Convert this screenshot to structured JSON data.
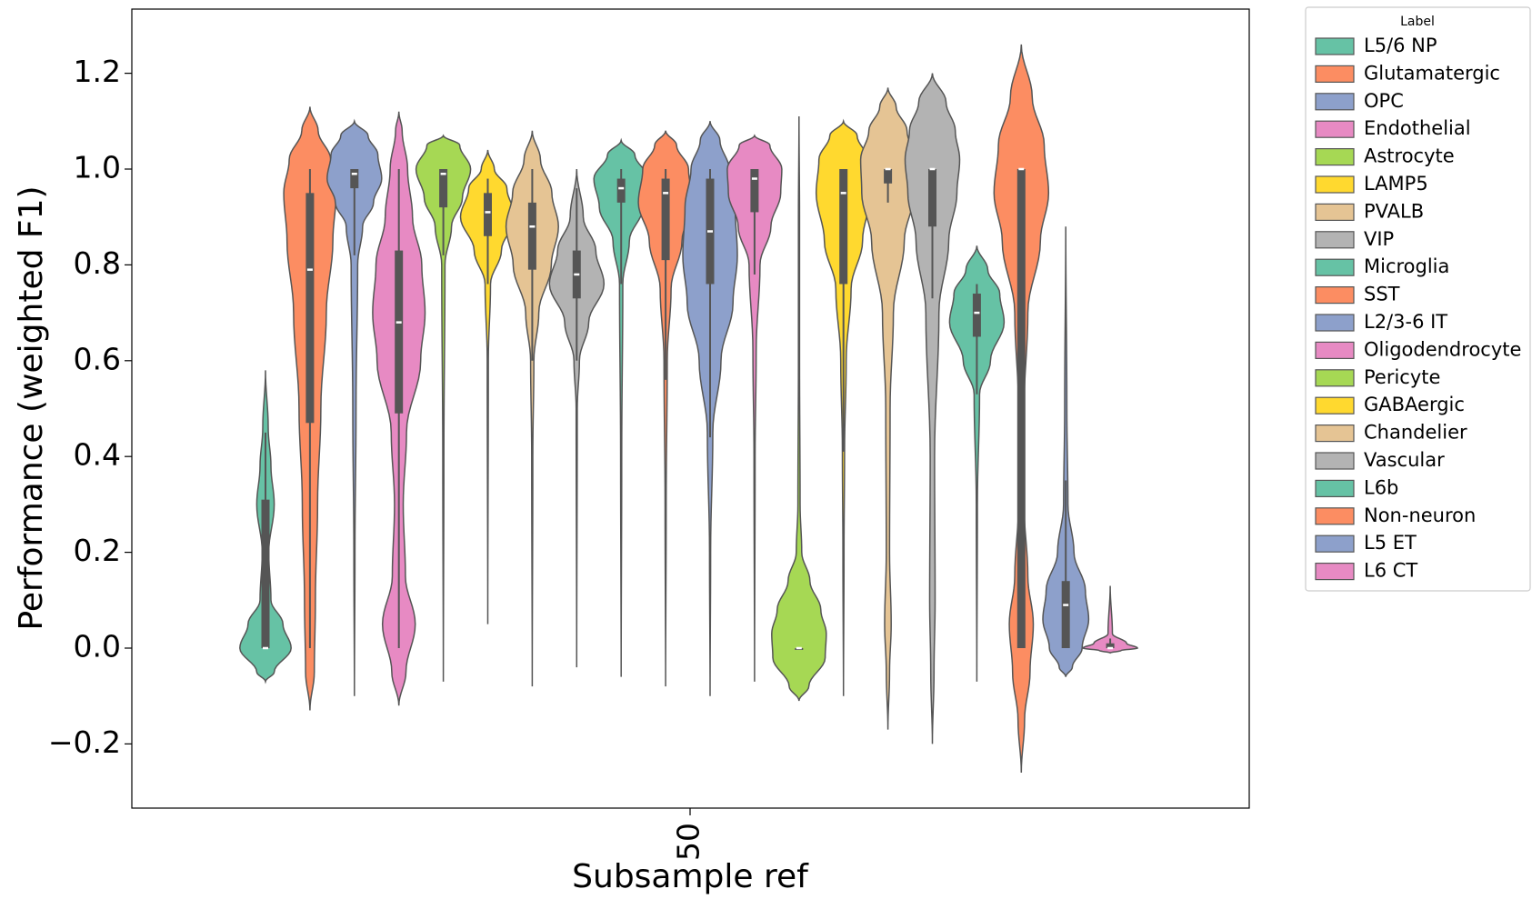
{
  "chart_data": {
    "type": "violin",
    "title": "",
    "xlabel": "Subsample ref",
    "ylabel": "Performance (weighted F1)",
    "categories": [
      "50"
    ],
    "ylim": [
      -0.33,
      1.33
    ],
    "yticks": [
      -0.2,
      0.0,
      0.2,
      0.4,
      0.6,
      0.8,
      1.0,
      1.2
    ],
    "ytick_labels": [
      "−0.2",
      "0.0",
      "0.2",
      "0.4",
      "0.6",
      "0.8",
      "1.0",
      "1.2"
    ],
    "grid": false,
    "legend": {
      "title": "Label",
      "placement": "outside-top-right"
    },
    "colors": {
      "palette": [
        "#66c2a5",
        "#fc8d62",
        "#8da0cb",
        "#e78ac3",
        "#a6d854",
        "#ffd92f",
        "#e5c494",
        "#b3b3b3"
      ],
      "edge": "#555555",
      "box": "#555555",
      "median": "#ffffff"
    },
    "series": [
      {
        "name": "L5/6 NP",
        "color": "#66c2a5",
        "min": -0.07,
        "max": 0.58,
        "q1": 0.0,
        "median": 0.0,
        "q3": 0.31,
        "wlo": 0.0,
        "whi": 0.45,
        "kde": [
          [
            -0.07,
            0
          ],
          [
            -0.05,
            0.16
          ],
          [
            0.0,
            0.47
          ],
          [
            0.05,
            0.32
          ],
          [
            0.1,
            0.1
          ],
          [
            0.2,
            0.06
          ],
          [
            0.3,
            0.16
          ],
          [
            0.38,
            0.1
          ],
          [
            0.46,
            0.05
          ],
          [
            0.58,
            0
          ]
        ]
      },
      {
        "name": "Glutamatergic",
        "color": "#fc8d62",
        "min": -0.13,
        "max": 1.13,
        "q1": 0.47,
        "median": 0.79,
        "q3": 0.95,
        "wlo": 0.0,
        "whi": 1.0,
        "kde": [
          [
            -0.13,
            0
          ],
          [
            -0.05,
            0.08
          ],
          [
            0.1,
            0.1
          ],
          [
            0.3,
            0.14
          ],
          [
            0.5,
            0.2
          ],
          [
            0.7,
            0.3
          ],
          [
            0.85,
            0.42
          ],
          [
            0.95,
            0.48
          ],
          [
            1.02,
            0.38
          ],
          [
            1.08,
            0.15
          ],
          [
            1.13,
            0
          ]
        ]
      },
      {
        "name": "OPC",
        "color": "#8da0cb",
        "min": -0.1,
        "max": 1.1,
        "q1": 0.96,
        "median": 0.99,
        "q3": 1.0,
        "wlo": 0.82,
        "whi": 1.0,
        "kde": [
          [
            -0.1,
            0
          ],
          [
            0.2,
            0.01
          ],
          [
            0.5,
            0.03
          ],
          [
            0.8,
            0.06
          ],
          [
            0.88,
            0.15
          ],
          [
            0.93,
            0.35
          ],
          [
            0.98,
            0.5
          ],
          [
            1.03,
            0.43
          ],
          [
            1.07,
            0.25
          ],
          [
            1.1,
            0
          ]
        ]
      },
      {
        "name": "Endothelial",
        "color": "#e78ac3",
        "min": -0.12,
        "max": 1.12,
        "q1": 0.49,
        "median": 0.68,
        "q3": 0.83,
        "wlo": 0.0,
        "whi": 1.0,
        "kde": [
          [
            -0.12,
            0
          ],
          [
            -0.05,
            0.13
          ],
          [
            0.05,
            0.3
          ],
          [
            0.15,
            0.12
          ],
          [
            0.3,
            0.08
          ],
          [
            0.45,
            0.14
          ],
          [
            0.6,
            0.4
          ],
          [
            0.7,
            0.48
          ],
          [
            0.8,
            0.42
          ],
          [
            0.9,
            0.25
          ],
          [
            1.0,
            0.16
          ],
          [
            1.08,
            0.06
          ],
          [
            1.12,
            0
          ]
        ]
      },
      {
        "name": "Astrocyte",
        "color": "#a6d854",
        "min": -0.07,
        "max": 1.07,
        "q1": 0.92,
        "median": 0.99,
        "q3": 1.0,
        "wlo": 0.82,
        "whi": 1.0,
        "kde": [
          [
            -0.07,
            0
          ],
          [
            0.4,
            0.01
          ],
          [
            0.8,
            0.03
          ],
          [
            0.88,
            0.15
          ],
          [
            0.94,
            0.35
          ],
          [
            1.0,
            0.5
          ],
          [
            1.05,
            0.3
          ],
          [
            1.07,
            0
          ]
        ]
      },
      {
        "name": "LAMP5",
        "color": "#ffd92f",
        "min": 0.05,
        "max": 1.04,
        "q1": 0.86,
        "median": 0.91,
        "q3": 0.95,
        "wlo": 0.76,
        "whi": 0.98,
        "kde": [
          [
            0.05,
            0
          ],
          [
            0.6,
            0.01
          ],
          [
            0.76,
            0.05
          ],
          [
            0.83,
            0.25
          ],
          [
            0.9,
            0.5
          ],
          [
            0.96,
            0.35
          ],
          [
            1.0,
            0.12
          ],
          [
            1.04,
            0
          ]
        ]
      },
      {
        "name": "PVALB",
        "color": "#e5c494",
        "min": -0.08,
        "max": 1.08,
        "q1": 0.79,
        "median": 0.88,
        "q3": 0.93,
        "wlo": 0.6,
        "whi": 1.0,
        "kde": [
          [
            -0.08,
            0
          ],
          [
            0.4,
            0.01
          ],
          [
            0.6,
            0.03
          ],
          [
            0.7,
            0.12
          ],
          [
            0.8,
            0.35
          ],
          [
            0.88,
            0.48
          ],
          [
            0.95,
            0.36
          ],
          [
            1.02,
            0.15
          ],
          [
            1.08,
            0
          ]
        ]
      },
      {
        "name": "VIP",
        "color": "#b3b3b3",
        "min": -0.04,
        "max": 1.0,
        "q1": 0.73,
        "median": 0.78,
        "q3": 0.83,
        "wlo": 0.6,
        "whi": 0.96,
        "kde": [
          [
            -0.04,
            0
          ],
          [
            0.5,
            0.01
          ],
          [
            0.6,
            0.05
          ],
          [
            0.68,
            0.22
          ],
          [
            0.76,
            0.5
          ],
          [
            0.83,
            0.35
          ],
          [
            0.9,
            0.12
          ],
          [
            1.0,
            0
          ]
        ]
      },
      {
        "name": "Microglia",
        "color": "#66c2a5",
        "min": -0.06,
        "max": 1.06,
        "q1": 0.93,
        "median": 0.96,
        "q3": 0.98,
        "wlo": 0.76,
        "whi": 1.0,
        "kde": [
          [
            -0.06,
            0
          ],
          [
            0.4,
            0.01
          ],
          [
            0.76,
            0.03
          ],
          [
            0.85,
            0.15
          ],
          [
            0.92,
            0.4
          ],
          [
            0.98,
            0.5
          ],
          [
            1.03,
            0.25
          ],
          [
            1.06,
            0
          ]
        ]
      },
      {
        "name": "SST",
        "color": "#fc8d62",
        "min": -0.08,
        "max": 1.08,
        "q1": 0.81,
        "median": 0.95,
        "q3": 0.98,
        "wlo": 0.56,
        "whi": 1.0,
        "kde": [
          [
            -0.08,
            0
          ],
          [
            0.3,
            0.01
          ],
          [
            0.6,
            0.03
          ],
          [
            0.75,
            0.1
          ],
          [
            0.85,
            0.3
          ],
          [
            0.93,
            0.5
          ],
          [
            1.0,
            0.42
          ],
          [
            1.05,
            0.2
          ],
          [
            1.08,
            0
          ]
        ]
      },
      {
        "name": "L2/3-6 IT",
        "color": "#8da0cb",
        "min": -0.1,
        "max": 1.1,
        "q1": 0.76,
        "median": 0.87,
        "q3": 0.98,
        "wlo": 0.44,
        "whi": 1.0,
        "kde": [
          [
            -0.1,
            0
          ],
          [
            0.2,
            0.01
          ],
          [
            0.45,
            0.05
          ],
          [
            0.6,
            0.2
          ],
          [
            0.72,
            0.42
          ],
          [
            0.82,
            0.5
          ],
          [
            0.92,
            0.46
          ],
          [
            1.0,
            0.35
          ],
          [
            1.06,
            0.18
          ],
          [
            1.1,
            0
          ]
        ]
      },
      {
        "name": "Oligodendrocyte",
        "color": "#e78ac3",
        "min": -0.07,
        "max": 1.07,
        "q1": 0.91,
        "median": 0.98,
        "q3": 1.0,
        "wlo": 0.78,
        "whi": 1.0,
        "kde": [
          [
            -0.07,
            0
          ],
          [
            0.4,
            0.01
          ],
          [
            0.62,
            0.03
          ],
          [
            0.8,
            0.1
          ],
          [
            0.88,
            0.3
          ],
          [
            0.95,
            0.48
          ],
          [
            1.0,
            0.5
          ],
          [
            1.05,
            0.28
          ],
          [
            1.07,
            0
          ]
        ]
      },
      {
        "name": "Pericyte",
        "color": "#a6d854",
        "min": -0.11,
        "max": 1.11,
        "q1": 0.0,
        "median": 0.0,
        "q3": 0.0,
        "wlo": 0.0,
        "whi": 0.0,
        "kde": [
          [
            -0.11,
            0
          ],
          [
            -0.08,
            0.18
          ],
          [
            -0.02,
            0.48
          ],
          [
            0.03,
            0.5
          ],
          [
            0.08,
            0.4
          ],
          [
            0.14,
            0.2
          ],
          [
            0.2,
            0.05
          ],
          [
            0.3,
            0.02
          ],
          [
            0.6,
            0.01
          ],
          [
            0.9,
            0.01
          ],
          [
            1.11,
            0
          ]
        ]
      },
      {
        "name": "GABAergic",
        "color": "#ffd92f",
        "min": -0.1,
        "max": 1.1,
        "q1": 0.76,
        "median": 0.95,
        "q3": 1.0,
        "wlo": 0.41,
        "whi": 1.0,
        "kde": [
          [
            -0.1,
            0
          ],
          [
            0.2,
            0.01
          ],
          [
            0.41,
            0.02
          ],
          [
            0.6,
            0.05
          ],
          [
            0.75,
            0.14
          ],
          [
            0.85,
            0.35
          ],
          [
            0.95,
            0.5
          ],
          [
            1.02,
            0.45
          ],
          [
            1.07,
            0.25
          ],
          [
            1.1,
            0
          ]
        ]
      },
      {
        "name": "Chandelier",
        "color": "#e5c494",
        "min": -0.17,
        "max": 1.17,
        "q1": 0.97,
        "median": 1.0,
        "q3": 1.0,
        "wlo": 0.93,
        "whi": 1.0,
        "kde": [
          [
            -0.17,
            0
          ],
          [
            -0.05,
            0.03
          ],
          [
            0.05,
            0.06
          ],
          [
            0.2,
            0.03
          ],
          [
            0.5,
            0.04
          ],
          [
            0.7,
            0.1
          ],
          [
            0.85,
            0.3
          ],
          [
            0.95,
            0.48
          ],
          [
            1.02,
            0.5
          ],
          [
            1.08,
            0.35
          ],
          [
            1.13,
            0.15
          ],
          [
            1.17,
            0
          ]
        ]
      },
      {
        "name": "Vascular",
        "color": "#b3b3b3",
        "min": -0.2,
        "max": 1.2,
        "q1": 0.88,
        "median": 1.0,
        "q3": 1.0,
        "wlo": 0.73,
        "whi": 1.0,
        "kde": [
          [
            -0.2,
            0
          ],
          [
            -0.05,
            0.03
          ],
          [
            0.1,
            0.05
          ],
          [
            0.4,
            0.04
          ],
          [
            0.7,
            0.12
          ],
          [
            0.85,
            0.3
          ],
          [
            0.95,
            0.45
          ],
          [
            1.02,
            0.5
          ],
          [
            1.08,
            0.42
          ],
          [
            1.14,
            0.25
          ],
          [
            1.2,
            0
          ]
        ]
      },
      {
        "name": "L6b",
        "color": "#66c2a5",
        "min": -0.07,
        "max": 0.84,
        "q1": 0.65,
        "median": 0.7,
        "q3": 0.74,
        "wlo": 0.53,
        "whi": 0.76,
        "kde": [
          [
            -0.07,
            0
          ],
          [
            0.3,
            0.01
          ],
          [
            0.53,
            0.05
          ],
          [
            0.6,
            0.25
          ],
          [
            0.68,
            0.5
          ],
          [
            0.74,
            0.42
          ],
          [
            0.79,
            0.2
          ],
          [
            0.84,
            0
          ]
        ]
      },
      {
        "name": "Non-neuron",
        "color": "#fc8d62",
        "min": -0.26,
        "max": 1.26,
        "q1": 0.0,
        "median": 1.0,
        "q3": 1.0,
        "wlo": 0.0,
        "whi": 1.0,
        "kde": [
          [
            -0.26,
            0
          ],
          [
            -0.15,
            0.06
          ],
          [
            -0.05,
            0.16
          ],
          [
            0.05,
            0.22
          ],
          [
            0.15,
            0.12
          ],
          [
            0.3,
            0.05
          ],
          [
            0.5,
            0.05
          ],
          [
            0.7,
            0.12
          ],
          [
            0.85,
            0.35
          ],
          [
            0.95,
            0.5
          ],
          [
            1.05,
            0.42
          ],
          [
            1.15,
            0.2
          ],
          [
            1.26,
            0
          ]
        ]
      },
      {
        "name": "L5 ET",
        "color": "#8da0cb",
        "min": -0.06,
        "max": 0.88,
        "q1": 0.0,
        "median": 0.09,
        "q3": 0.14,
        "wlo": 0.0,
        "whi": 0.35,
        "kde": [
          [
            -0.06,
            0
          ],
          [
            -0.04,
            0.12
          ],
          [
            0.0,
            0.3
          ],
          [
            0.06,
            0.42
          ],
          [
            0.12,
            0.36
          ],
          [
            0.2,
            0.15
          ],
          [
            0.3,
            0.04
          ],
          [
            0.5,
            0.02
          ],
          [
            0.88,
            0
          ]
        ]
      },
      {
        "name": "L6 CT",
        "color": "#e78ac3",
        "min": -0.01,
        "max": 0.13,
        "q1": 0.0,
        "median": 0.0,
        "q3": 0.01,
        "wlo": 0.0,
        "whi": 0.02,
        "kde": [
          [
            -0.01,
            0
          ],
          [
            -0.005,
            0.2
          ],
          [
            0.0,
            0.5
          ],
          [
            0.01,
            0.3
          ],
          [
            0.03,
            0.04
          ],
          [
            0.13,
            0
          ]
        ]
      }
    ]
  }
}
